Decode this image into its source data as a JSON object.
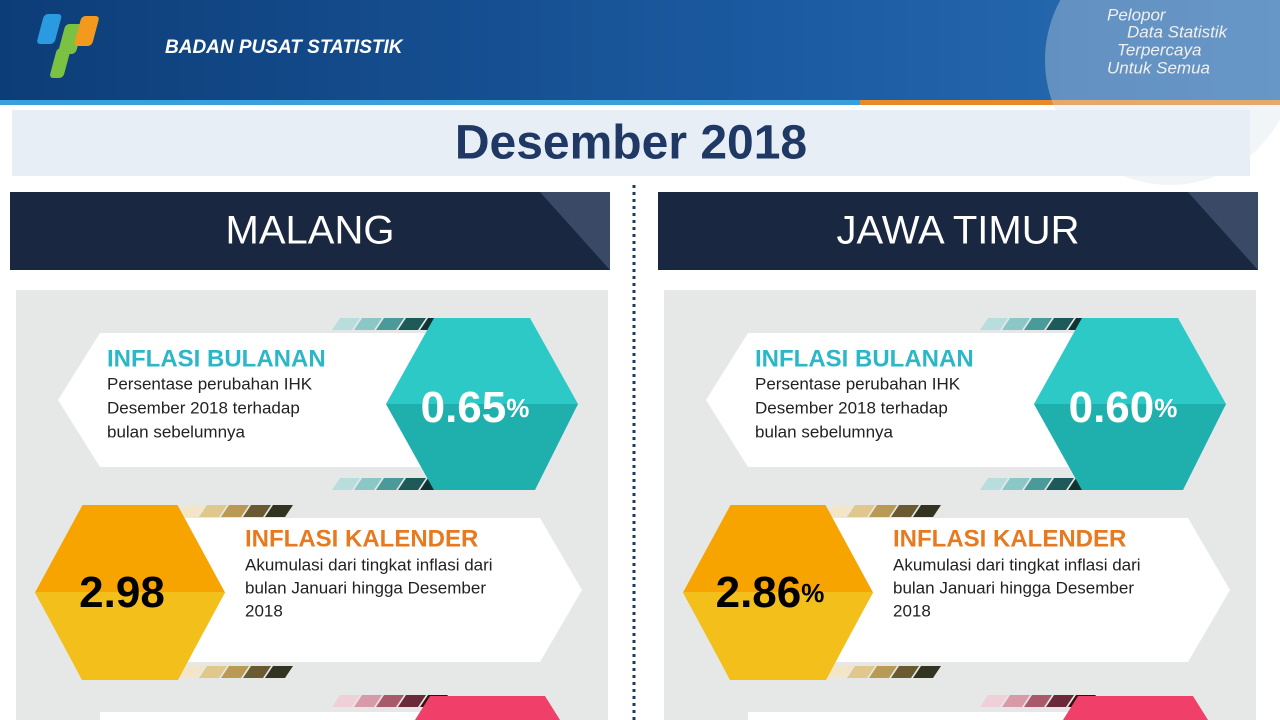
{
  "header": {
    "org": "BADAN PUSAT STATISTIK",
    "tagline": [
      "Pelopor",
      "Data Statistik",
      "Terpercaya",
      "Untuk Semua"
    ]
  },
  "title": "Desember 2018",
  "panels": [
    {
      "region": "MALANG",
      "monthly": {
        "label": "INFLASI BULANAN",
        "description": [
          "Persentase perubahan IHK",
          "Desember  2018  terhadap",
          "bulan sebelumnya"
        ],
        "value": "0.65",
        "unit": "%"
      },
      "calendar": {
        "label": "INFLASI KALENDER",
        "description": [
          "Akumulasi dari tingkat inflasi dari",
          "bulan Januari hingga  Desember",
          "2018"
        ],
        "value": "2.98"
      }
    },
    {
      "region": "JAWA TIMUR",
      "monthly": {
        "label": "INFLASI BULANAN",
        "description": [
          "Persentase perubahan IHK",
          "Desember  2018  terhadap",
          "bulan sebelumnya"
        ],
        "value": "0.60",
        "unit": "%"
      },
      "calendar": {
        "label": "INFLASI KALENDER",
        "description": [
          "Akumulasi dari tingkat inflasi dari",
          "bulan Januari hingga Desember",
          "2018"
        ],
        "value": "2.86",
        "unit": "%"
      }
    }
  ]
}
